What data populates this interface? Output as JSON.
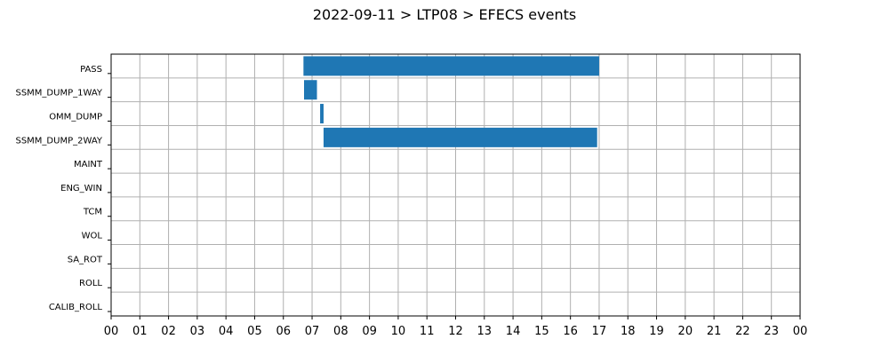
{
  "chart_data": {
    "type": "bar",
    "orientation": "horizontal-timeline",
    "title": "2022-09-11 > LTP08 > EFECS events",
    "xlabel": "",
    "ylabel": "",
    "grid": true,
    "legend": "none",
    "bar_color": "#1f77b4",
    "categories": [
      "PASS",
      "SSMM_DUMP_1WAY",
      "OMM_DUMP",
      "SSMM_DUMP_2WAY",
      "MAINT",
      "ENG_WIN",
      "TCM",
      "WOL",
      "SA_ROT",
      "ROLL",
      "CALIB_ROLL"
    ],
    "xlim": [
      0,
      24
    ],
    "x_ticks": [
      "00",
      "01",
      "02",
      "03",
      "04",
      "05",
      "06",
      "07",
      "08",
      "09",
      "10",
      "11",
      "12",
      "13",
      "14",
      "15",
      "16",
      "17",
      "18",
      "19",
      "20",
      "21",
      "22",
      "23",
      "00"
    ],
    "events": [
      {
        "category": "PASS",
        "start": 6.7,
        "end": 17.0
      },
      {
        "category": "SSMM_DUMP_1WAY",
        "start": 6.72,
        "end": 7.17
      },
      {
        "category": "OMM_DUMP",
        "start": 7.28,
        "end": 7.4
      },
      {
        "category": "SSMM_DUMP_2WAY",
        "start": 7.4,
        "end": 16.93
      }
    ]
  }
}
